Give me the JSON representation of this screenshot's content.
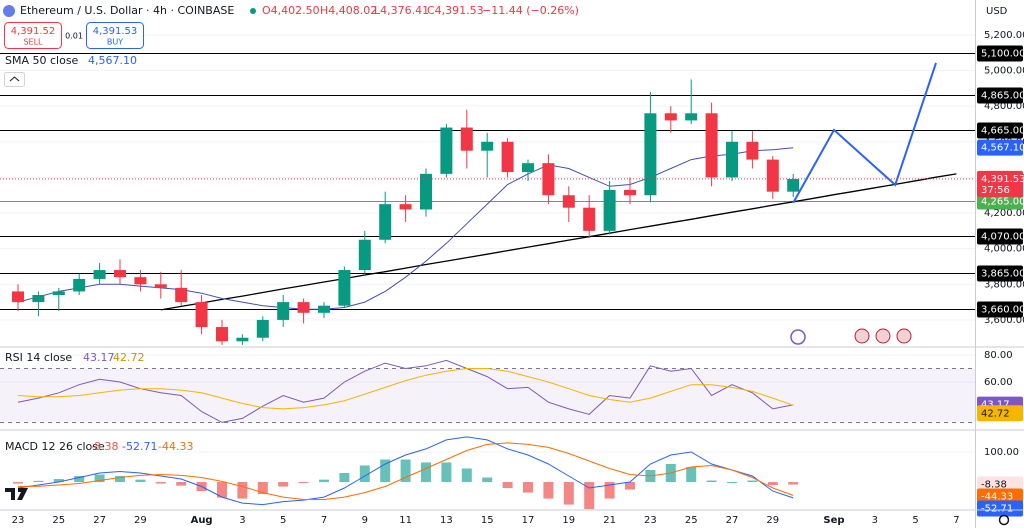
{
  "header": {
    "symbol": "Ethereum / U.S. Dollar · 4h · COINBASE",
    "open": "O4,402.50",
    "high": "H4,408.02",
    "low": "L4,376.41",
    "close": "C4,391.53",
    "change": "−11.44 (−0.26%)",
    "sell_price": "4,391.52",
    "sell_label": "SELL",
    "spread": "0.01",
    "buy_price": "4,391.53",
    "buy_label": "BUY",
    "currency": "USD"
  },
  "chart_data": [
    {
      "type": "candlestick",
      "categories": [
        "23",
        null,
        "25",
        null,
        "27",
        null,
        "29",
        null,
        null,
        "Aug",
        null,
        "3",
        null,
        "5",
        null,
        "7",
        null,
        "9",
        null,
        "11",
        null,
        "13",
        null,
        "15",
        null,
        "17",
        null,
        "19",
        null,
        "21",
        null,
        "23",
        null,
        "25",
        null,
        "27",
        null,
        "29",
        null,
        null,
        "Sep",
        null,
        "3",
        null,
        "5",
        null,
        "7"
      ],
      "open": [
        3760,
        3700,
        3740,
        3760,
        3830,
        3880,
        3840,
        3800,
        3780,
        3700,
        3560,
        3480,
        3500,
        3600,
        3700,
        3640,
        3680,
        3880,
        4050,
        4250,
        4220,
        4420,
        4680,
        4550,
        4600,
        4430,
        4480,
        4300,
        4230,
        4100,
        4330,
        4300,
        4760,
        4720,
        4760,
        4400,
        4600,
        4500,
        4320,
        null,
        null,
        null,
        null,
        null,
        null,
        null,
        null
      ],
      "high": [
        3800,
        3760,
        3780,
        3860,
        3920,
        3940,
        3880,
        3870,
        3880,
        3740,
        3600,
        3520,
        3620,
        3740,
        3720,
        3700,
        3900,
        4100,
        4320,
        4300,
        4450,
        4700,
        4780,
        4650,
        4620,
        4500,
        4530,
        4350,
        4300,
        4380,
        4400,
        4880,
        4800,
        4950,
        4820,
        4660,
        4660,
        4520,
        4420,
        null,
        null,
        null,
        null,
        null,
        null,
        null,
        null
      ],
      "low": [
        3650,
        3620,
        3650,
        3740,
        3800,
        3800,
        3760,
        3720,
        3680,
        3520,
        3460,
        3460,
        3480,
        3560,
        3580,
        3610,
        3670,
        3860,
        4030,
        4150,
        4180,
        4400,
        4450,
        4400,
        4400,
        4380,
        4250,
        4150,
        4060,
        4080,
        4250,
        4260,
        4650,
        4700,
        4350,
        4380,
        4450,
        4280,
        4290,
        null,
        null,
        null,
        null,
        null,
        null,
        null,
        null
      ],
      "close": [
        3700,
        3740,
        3760,
        3830,
        3880,
        3840,
        3800,
        3780,
        3700,
        3560,
        3480,
        3500,
        3600,
        3700,
        3640,
        3680,
        3880,
        4050,
        4250,
        4220,
        4420,
        4680,
        4550,
        4600,
        4430,
        4480,
        4300,
        4230,
        4100,
        4330,
        4300,
        4760,
        4720,
        4760,
        4400,
        4600,
        4500,
        4320,
        4391.53,
        null,
        null,
        null,
        null,
        null,
        null,
        null,
        null
      ],
      "up_color": "#089981",
      "down_color": "#f23645",
      "ylim": [
        3448,
        5396
      ],
      "yticks": [
        {
          "value": 3600,
          "label": "3,600.00"
        },
        {
          "value": 3800,
          "label": "3,800.00"
        },
        {
          "value": 4000,
          "label": "4,000.00"
        },
        {
          "value": 4200,
          "label": "4,200.00"
        },
        {
          "value": 4400,
          "label": "4,400.00"
        },
        {
          "value": 4600,
          "label": "4,600.00"
        },
        {
          "value": 4800,
          "label": "4,800.00"
        },
        {
          "value": 5000,
          "label": "5,000.00"
        },
        {
          "value": 5200,
          "label": "5,200.00"
        }
      ],
      "sma": {
        "name": "SMA 50 close",
        "value_label": "4,567.10",
        "color": "#3f51b5",
        "values": [
          3700,
          3730,
          3760,
          3780,
          3800,
          3800,
          3790,
          3780,
          3770,
          3750,
          3720,
          3700,
          3680,
          3670,
          3660,
          3660,
          3670,
          3700,
          3760,
          3840,
          3930,
          4030,
          4140,
          4250,
          4360,
          4420,
          4470,
          4450,
          4400,
          4350,
          4360,
          4400,
          4450,
          4500,
          4520,
          4530,
          4550,
          4555,
          4567.1,
          null,
          null,
          null,
          null,
          null,
          null,
          null,
          null
        ]
      },
      "levels": [
        {
          "value": 5100,
          "label": "5,100.00"
        },
        {
          "value": 4865,
          "label": "4,865.00"
        },
        {
          "value": 4665,
          "label": "4,665.00"
        },
        {
          "value": 4070,
          "label": "4,070.00"
        },
        {
          "value": 3865,
          "label": "3,865.00"
        },
        {
          "value": 3660,
          "label": "3,660.00"
        }
      ],
      "level_color": "#000000",
      "support": {
        "value": 4265,
        "label": "4,265.00",
        "color": "#4caf50"
      },
      "last_price": {
        "value": 4391.53,
        "label": "4,391.53",
        "countdown": "37:56",
        "color": "#f23645"
      },
      "trendline": {
        "color": "#000000",
        "values": [
          null,
          null,
          null,
          null,
          null,
          null,
          null,
          3656,
          3676,
          3695,
          3715,
          3734,
          3754,
          3774,
          3793,
          3813,
          3832,
          3852,
          3871,
          3891,
          3911,
          3930,
          3950,
          3969,
          3989,
          4009,
          4028,
          4048,
          4067,
          4087,
          4107,
          4126,
          4146,
          4165,
          4185,
          4205,
          4224,
          4244,
          4263,
          4283,
          4303,
          4322,
          4342,
          4361,
          4381,
          4401,
          4420
        ]
      },
      "projection": {
        "color": "#2962ff",
        "values": [
          null,
          null,
          null,
          null,
          null,
          null,
          null,
          null,
          null,
          null,
          null,
          null,
          null,
          null,
          null,
          null,
          null,
          null,
          null,
          null,
          null,
          null,
          null,
          null,
          null,
          null,
          null,
          null,
          null,
          null,
          null,
          null,
          null,
          null,
          null,
          null,
          null,
          null,
          4257,
          4462,
          4667,
          4564,
          4461,
          4358,
          4700,
          5043,
          null
        ]
      }
    },
    {
      "type": "line",
      "title": "RSI 14 close",
      "ylim": [
        24.4,
        85.9
      ],
      "yticks": [
        {
          "value": 60,
          "label": "60.00"
        },
        {
          "value": 80,
          "label": "80.00"
        }
      ],
      "band": [
        30,
        70
      ],
      "band_color": "#7e57c2",
      "series": [
        {
          "color": "#7e57c2",
          "value_label": "43.17",
          "values": [
            45,
            48,
            52,
            58,
            62,
            60,
            55,
            52,
            50,
            38,
            30,
            33,
            42,
            50,
            45,
            48,
            60,
            68,
            74,
            70,
            72,
            76,
            70,
            64,
            55,
            56,
            45,
            40,
            36,
            50,
            48,
            72,
            68,
            70,
            50,
            58,
            52,
            40,
            43.17,
            null,
            null,
            null,
            null,
            null,
            null,
            null,
            null
          ]
        },
        {
          "color": "#f7b500",
          "value_label": "42.72",
          "values": [
            50,
            49,
            49,
            50,
            52,
            54,
            55,
            55,
            54,
            52,
            48,
            44,
            41,
            40,
            41,
            43,
            46,
            51,
            56,
            61,
            65,
            68,
            70,
            70,
            68,
            64,
            60,
            55,
            50,
            47,
            45,
            48,
            53,
            58,
            58,
            56,
            53,
            48,
            42.72,
            null,
            null,
            null,
            null,
            null,
            null,
            null,
            null
          ]
        }
      ]
    },
    {
      "type": "macd",
      "title": "MACD 12 26 close",
      "ylim": [
        -93,
        173
      ],
      "yticks": [
        {
          "value": 100,
          "label": "100.00"
        }
      ],
      "histogram": {
        "value_label": "-8.38",
        "up_color": "#26a69a",
        "down_color": "#ef5350",
        "values": [
          -5,
          4,
          10,
          20,
          25,
          20,
          8,
          -5,
          -12,
          -30,
          -52,
          -55,
          -40,
          -15,
          -2,
          8,
          30,
          55,
          75,
          75,
          65,
          65,
          45,
          15,
          -20,
          -35,
          -55,
          -75,
          -90,
          -55,
          -25,
          40,
          60,
          50,
          5,
          0,
          5,
          -10,
          -8.38,
          null,
          null,
          null,
          null,
          null,
          null,
          null,
          null
        ]
      },
      "series": [
        {
          "color": "#2962ff",
          "value_label": "-52.71",
          "values": [
            -20,
            -10,
            0,
            15,
            30,
            35,
            30,
            20,
            10,
            -15,
            -50,
            -70,
            -75,
            -65,
            -60,
            -50,
            -20,
            20,
            60,
            90,
            110,
            140,
            150,
            140,
            110,
            90,
            60,
            20,
            -20,
            -10,
            0,
            60,
            90,
            100,
            60,
            40,
            20,
            -30,
            -52.71,
            null,
            null,
            null,
            null,
            null,
            null,
            null,
            null
          ]
        },
        {
          "color": "#ff6d00",
          "value_label": "-44.33",
          "values": [
            -15,
            -14,
            -10,
            -5,
            5,
            15,
            22,
            25,
            22,
            15,
            2,
            -15,
            -35,
            -50,
            -58,
            -58,
            -50,
            -35,
            -15,
            15,
            45,
            75,
            105,
            125,
            130,
            125,
            115,
            95,
            70,
            45,
            25,
            20,
            30,
            50,
            55,
            40,
            15,
            -20,
            -44.33,
            null,
            null,
            null,
            null,
            null,
            null,
            null,
            null
          ]
        }
      ]
    }
  ]
}
